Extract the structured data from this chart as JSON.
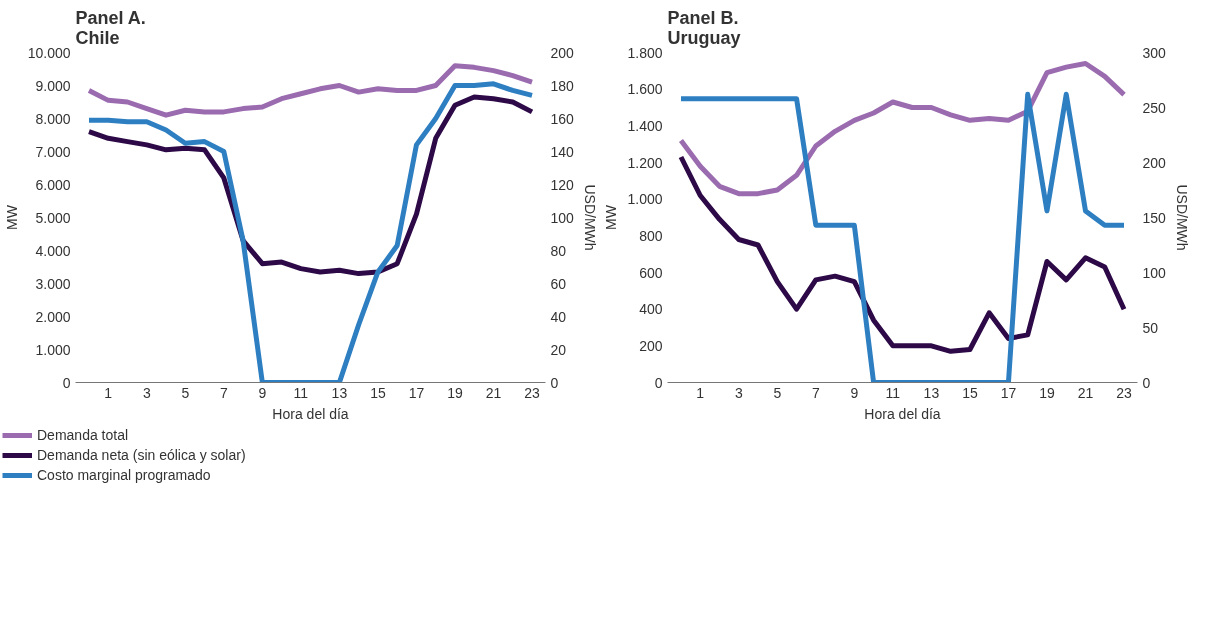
{
  "chart_data": [
    {
      "type": "line",
      "title": "Panel A.\nChile",
      "xlabel": "Hora del día",
      "ylabel": "MW",
      "y2label": "USD/MWh",
      "x": [
        0,
        1,
        2,
        3,
        4,
        5,
        6,
        7,
        8,
        9,
        10,
        11,
        12,
        13,
        14,
        15,
        16,
        17,
        18,
        19,
        20,
        21,
        22,
        23
      ],
      "xlim": [
        -0.7,
        23.7
      ],
      "xticks": [
        1,
        3,
        5,
        7,
        9,
        11,
        13,
        15,
        17,
        19,
        21,
        23
      ],
      "ylim": [
        0,
        10000
      ],
      "yticks": [
        {
          "value": 0,
          "label": "0"
        },
        {
          "value": 1000,
          "label": "1.000"
        },
        {
          "value": 2000,
          "label": "2.000"
        },
        {
          "value": 3000,
          "label": "3.000"
        },
        {
          "value": 4000,
          "label": "4.000"
        },
        {
          "value": 5000,
          "label": "5.000"
        },
        {
          "value": 6000,
          "label": "6.000"
        },
        {
          "value": 7000,
          "label": "7.000"
        },
        {
          "value": 8000,
          "label": "8.000"
        },
        {
          "value": 9000,
          "label": "9.000"
        },
        {
          "value": 10000,
          "label": "10.000"
        }
      ],
      "y2lim": [
        0,
        200
      ],
      "y2ticks": [
        0,
        20,
        40,
        60,
        80,
        100,
        120,
        140,
        160,
        180,
        200
      ],
      "grid": false,
      "legend": "bottom",
      "line_style": "solid",
      "series": [
        {
          "name": "Demanda total",
          "color": "#9b6bb0",
          "values": [
            8850,
            8550,
            8500,
            8300,
            8100,
            8250,
            8200,
            8200,
            8300,
            8350,
            8600,
            8750,
            8900,
            9000,
            8800,
            8900,
            8850,
            8850,
            9000,
            9600,
            9550,
            9450,
            9300,
            9100
          ]
        },
        {
          "name": "Demanda neta (sin eólica y solar)",
          "color": "#2d0a47",
          "values": [
            7600,
            7400,
            7300,
            7200,
            7050,
            7100,
            7050,
            6200,
            4300,
            3600,
            3650,
            3450,
            3350,
            3400,
            3300,
            3350,
            3600,
            5100,
            7400,
            8400,
            8650,
            8600,
            8500,
            8200
          ]
        },
        {
          "name": "Costo marginal programado",
          "color": "#2e7fc2",
          "axis": "y2",
          "values": [
            159,
            159,
            158,
            158,
            153,
            145,
            146,
            140,
            86,
            0,
            0,
            0,
            0,
            0,
            35,
            67,
            83,
            144,
            160,
            180,
            180,
            181,
            177,
            174
          ]
        }
      ]
    },
    {
      "type": "line",
      "title": "Panel B.\nUruguay",
      "xlabel": "Hora del día",
      "ylabel": "MW",
      "y2label": "USD/MWh",
      "x": [
        0,
        1,
        2,
        3,
        4,
        5,
        6,
        7,
        8,
        9,
        10,
        11,
        12,
        13,
        14,
        15,
        16,
        17,
        18,
        19,
        20,
        21,
        22,
        23
      ],
      "xlim": [
        -0.7,
        23.7
      ],
      "xticks": [
        1,
        3,
        5,
        7,
        9,
        11,
        13,
        15,
        17,
        19,
        21,
        23
      ],
      "ylim": [
        0,
        1800
      ],
      "yticks": [
        {
          "value": 0,
          "label": "0"
        },
        {
          "value": 200,
          "label": "200"
        },
        {
          "value": 400,
          "label": "400"
        },
        {
          "value": 600,
          "label": "600"
        },
        {
          "value": 800,
          "label": "800"
        },
        {
          "value": 1000,
          "label": "1.000"
        },
        {
          "value": 1200,
          "label": "1.200"
        },
        {
          "value": 1400,
          "label": "1.400"
        },
        {
          "value": 1600,
          "label": "1.600"
        },
        {
          "value": 1800,
          "label": "1.800"
        }
      ],
      "y2lim": [
        0,
        300
      ],
      "y2ticks": [
        0,
        50,
        100,
        150,
        200,
        250,
        300
      ],
      "grid": false,
      "line_style": "solid",
      "series": [
        {
          "color": "#9b6bb0",
          "values": [
            1320,
            1180,
            1070,
            1030,
            1030,
            1050,
            1130,
            1290,
            1370,
            1430,
            1470,
            1530,
            1500,
            1500,
            1460,
            1430,
            1440,
            1430,
            1480,
            1690,
            1720,
            1740,
            1670,
            1570
          ]
        },
        {
          "color": "#2d0a47",
          "values": [
            1230,
            1020,
            890,
            780,
            750,
            550,
            400,
            560,
            580,
            550,
            340,
            200,
            200,
            200,
            170,
            180,
            380,
            240,
            260,
            660,
            560,
            680,
            630,
            400
          ]
        },
        {
          "color": "#2e7fc2",
          "axis": "y2",
          "values": [
            258,
            258,
            258,
            258,
            258,
            258,
            258,
            143,
            143,
            143,
            0,
            0,
            0,
            0,
            0,
            0,
            0,
            0,
            262,
            156,
            262,
            156,
            143,
            143
          ]
        }
      ]
    }
  ]
}
